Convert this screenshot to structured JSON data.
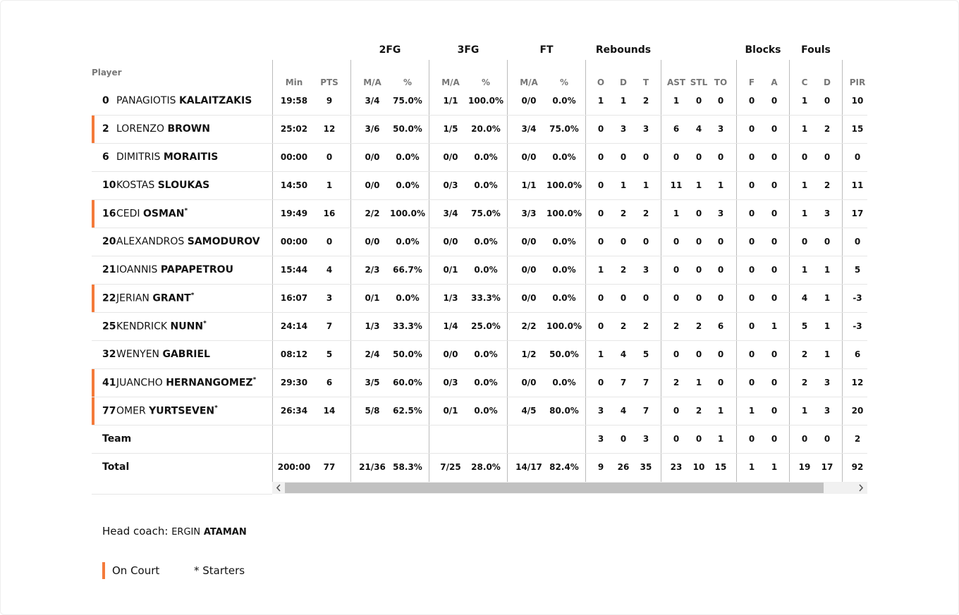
{
  "column_groups": [
    "2FG",
    "3FG",
    "FT",
    "Rebounds",
    "Blocks",
    "Fouls"
  ],
  "player_header": "Player",
  "columns": [
    "Min",
    "PTS",
    "M/A",
    "%",
    "M/A",
    "%",
    "M/A",
    "%",
    "O",
    "D",
    "T",
    "AST",
    "STL",
    "TO",
    "F",
    "A",
    "C",
    "D",
    "PIR"
  ],
  "rows": [
    {
      "number": "0",
      "first": "PANAGIOTIS",
      "last": "KALAITZAKIS",
      "on_court": false,
      "stats": [
        "19:58",
        "9",
        "3/4",
        "75.0%",
        "1/1",
        "100.0%",
        "0/0",
        "0.0%",
        "1",
        "1",
        "2",
        "1",
        "0",
        "0",
        "0",
        "0",
        "1",
        "0",
        "10"
      ]
    },
    {
      "number": "2",
      "first": "LORENZO",
      "last": "BROWN",
      "on_court": true,
      "stats": [
        "25:02",
        "12",
        "3/6",
        "50.0%",
        "1/5",
        "20.0%",
        "3/4",
        "75.0%",
        "0",
        "3",
        "3",
        "6",
        "4",
        "3",
        "0",
        "0",
        "1",
        "2",
        "15"
      ]
    },
    {
      "number": "6",
      "first": "DIMITRIS",
      "last": "MORAITIS",
      "on_court": false,
      "stats": [
        "00:00",
        "0",
        "0/0",
        "0.0%",
        "0/0",
        "0.0%",
        "0/0",
        "0.0%",
        "0",
        "0",
        "0",
        "0",
        "0",
        "0",
        "0",
        "0",
        "0",
        "0",
        "0"
      ]
    },
    {
      "number": "10",
      "first": "KOSTAS",
      "last": "SLOUKAS",
      "on_court": false,
      "stats": [
        "14:50",
        "1",
        "0/0",
        "0.0%",
        "0/3",
        "0.0%",
        "1/1",
        "100.0%",
        "0",
        "1",
        "1",
        "11",
        "1",
        "1",
        "0",
        "0",
        "1",
        "2",
        "11"
      ]
    },
    {
      "number": "16",
      "first": "CEDI",
      "last": "OSMAN",
      "starter": "*",
      "on_court": true,
      "stats": [
        "19:49",
        "16",
        "2/2",
        "100.0%",
        "3/4",
        "75.0%",
        "3/3",
        "100.0%",
        "0",
        "2",
        "2",
        "1",
        "0",
        "3",
        "0",
        "0",
        "1",
        "3",
        "17"
      ]
    },
    {
      "number": "20",
      "first": "ALEXANDROS",
      "last": "SAMODUROV",
      "on_court": false,
      "stats": [
        "00:00",
        "0",
        "0/0",
        "0.0%",
        "0/0",
        "0.0%",
        "0/0",
        "0.0%",
        "0",
        "0",
        "0",
        "0",
        "0",
        "0",
        "0",
        "0",
        "0",
        "0",
        "0"
      ]
    },
    {
      "number": "21",
      "first": "IOANNIS",
      "last": "PAPAPETROU",
      "on_court": false,
      "stats": [
        "15:44",
        "4",
        "2/3",
        "66.7%",
        "0/1",
        "0.0%",
        "0/0",
        "0.0%",
        "1",
        "2",
        "3",
        "0",
        "0",
        "0",
        "0",
        "0",
        "1",
        "1",
        "5"
      ]
    },
    {
      "number": "22",
      "first": "JERIAN",
      "last": "GRANT",
      "starter": "*",
      "on_court": true,
      "stats": [
        "16:07",
        "3",
        "0/1",
        "0.0%",
        "1/3",
        "33.3%",
        "0/0",
        "0.0%",
        "0",
        "0",
        "0",
        "0",
        "0",
        "0",
        "0",
        "0",
        "4",
        "1",
        "-3"
      ]
    },
    {
      "number": "25",
      "first": "KENDRICK",
      "last": "NUNN",
      "starter": "*",
      "on_court": false,
      "stats": [
        "24:14",
        "7",
        "1/3",
        "33.3%",
        "1/4",
        "25.0%",
        "2/2",
        "100.0%",
        "0",
        "2",
        "2",
        "2",
        "2",
        "6",
        "0",
        "1",
        "5",
        "1",
        "-3"
      ]
    },
    {
      "number": "32",
      "first": "WENYEN",
      "last": "GABRIEL",
      "on_court": false,
      "stats": [
        "08:12",
        "5",
        "2/4",
        "50.0%",
        "0/0",
        "0.0%",
        "1/2",
        "50.0%",
        "1",
        "4",
        "5",
        "0",
        "0",
        "0",
        "0",
        "0",
        "2",
        "1",
        "6"
      ]
    },
    {
      "number": "41",
      "first": "JUANCHO",
      "last": "HERNANGOMEZ",
      "starter": "*",
      "on_court": true,
      "stats": [
        "29:30",
        "6",
        "3/5",
        "60.0%",
        "0/3",
        "0.0%",
        "0/0",
        "0.0%",
        "0",
        "7",
        "7",
        "2",
        "1",
        "0",
        "0",
        "0",
        "2",
        "3",
        "12"
      ]
    },
    {
      "number": "77",
      "first": "OMER",
      "last": "YURTSEVEN",
      "starter": "*",
      "on_court": true,
      "stats": [
        "26:34",
        "14",
        "5/8",
        "62.5%",
        "0/1",
        "0.0%",
        "4/5",
        "80.0%",
        "3",
        "4",
        "7",
        "0",
        "2",
        "1",
        "1",
        "0",
        "1",
        "3",
        "20"
      ]
    },
    {
      "label": "Team",
      "stats": [
        null,
        null,
        null,
        null,
        null,
        null,
        null,
        null,
        "3",
        "0",
        "3",
        "0",
        "0",
        "1",
        "0",
        "0",
        "0",
        "0",
        "2"
      ]
    },
    {
      "label": "Total",
      "stats": [
        "200:00",
        "77",
        "21/36",
        "58.3%",
        "7/25",
        "28.0%",
        "14/17",
        "82.4%",
        "9",
        "26",
        "35",
        "23",
        "10",
        "15",
        "1",
        "1",
        "19",
        "17",
        "92"
      ]
    }
  ],
  "coach": {
    "label": "Head coach:",
    "first": "ERGIN",
    "last": "ATAMAN"
  },
  "legend": {
    "on_court": "On Court",
    "starters": "* Starters"
  }
}
